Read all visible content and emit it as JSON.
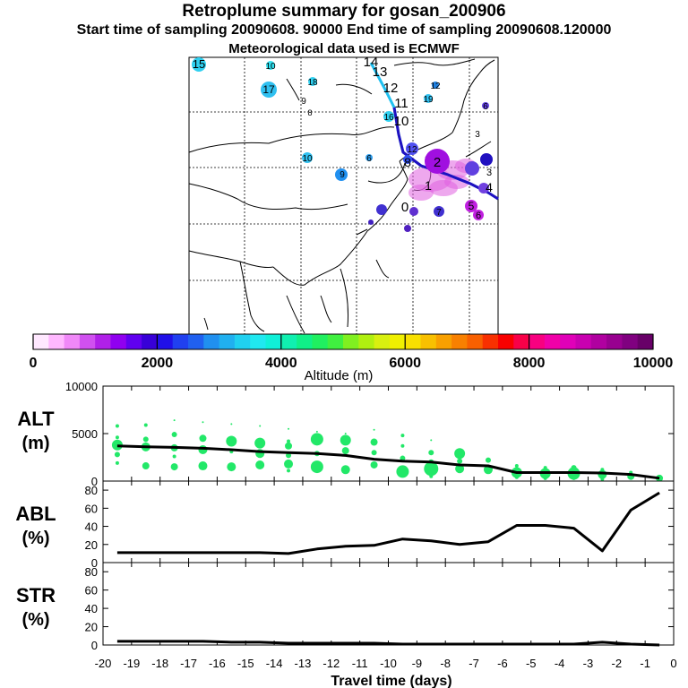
{
  "title": "Retroplume summary for gosan_200906",
  "subtitle": "Start time of sampling 20090608. 90000     End time of sampling 20090608.120000",
  "met_line": "Meteorological data used is ECMWF",
  "colors": {
    "blob": "#e060e0",
    "track_dark": "#2010c0",
    "track_light": "#20c0f0",
    "alt_dots": "#22e868"
  },
  "map_labels": [
    {
      "n": "14",
      "c": "#8020c0"
    },
    {
      "n": "13",
      "c": "#8020c0"
    },
    {
      "n": "12",
      "c": "#8020c0"
    },
    {
      "n": "11",
      "c": "#8020c0"
    },
    {
      "n": "10",
      "c": "#8020c0"
    },
    {
      "n": "15",
      "c": "#30d0f0"
    },
    {
      "n": "10",
      "c": "#30e0f0"
    },
    {
      "n": "17",
      "c": "#30c0f0"
    },
    {
      "n": "18",
      "c": "#30d0f0"
    },
    {
      "n": "9",
      "c": "#40e0e0"
    },
    {
      "n": "8",
      "c": "#40e0e0"
    },
    {
      "n": "12",
      "c": "#2080e0"
    },
    {
      "n": "19",
      "c": "#30c0f0"
    },
    {
      "n": "16",
      "c": "#30d0f0"
    },
    {
      "n": "10",
      "c": "#30a0f0"
    },
    {
      "n": "6",
      "c": "#30a0f0"
    },
    {
      "n": "9",
      "c": "#2090f0"
    },
    {
      "n": "12",
      "c": "#5050f0"
    },
    {
      "n": "8",
      "c": "#3050f0"
    },
    {
      "n": "2",
      "c": "#a010e0"
    },
    {
      "n": "1",
      "c": "#a010e0"
    },
    {
      "n": "0",
      "c": "#a010e0"
    },
    {
      "n": "7",
      "c": "#4030d0"
    },
    {
      "n": "5",
      "c": "#c020e0"
    },
    {
      "n": "6",
      "c": "#c020e0"
    },
    {
      "n": "4",
      "c": "#4030d0"
    },
    {
      "n": "3",
      "c": "#4030d0"
    },
    {
      "n": "6",
      "c": "#6040e0"
    },
    {
      "n": "3",
      "c": "#6040e0"
    }
  ],
  "colorbar": {
    "colors": [
      "#ffe8ff",
      "#ffb8ff",
      "#f088f8",
      "#d050f0",
      "#b020e8",
      "#9000f0",
      "#6000f0",
      "#3800d8",
      "#2010e8",
      "#2040f0",
      "#2060f0",
      "#2090f0",
      "#20b0f0",
      "#20d0f0",
      "#20e8f0",
      "#10f0d8",
      "#10f0b0",
      "#10f088",
      "#20f060",
      "#40f040",
      "#80f020",
      "#b0f010",
      "#d8f010",
      "#f0f000",
      "#f8e000",
      "#f8c000",
      "#f8a000",
      "#f88000",
      "#f86000",
      "#f83000",
      "#f80000",
      "#f80048",
      "#f80080",
      "#f000a8",
      "#e000b8",
      "#c800b0",
      "#b000a0",
      "#980090",
      "#800080",
      "#680068"
    ],
    "labels": [
      "0",
      "2000",
      "4000",
      "6000",
      "8000",
      "10000"
    ],
    "title": "Altitude (m)"
  },
  "chart_data": [
    {
      "type": "scatter+line",
      "panel": "ALT",
      "ylabel": "ALT",
      "yunit": "(m)",
      "ylim": [
        0,
        10000
      ],
      "yticks": [
        "10000",
        "5000",
        "0"
      ],
      "x": [
        -19.5,
        -18.5,
        -17.5,
        -16.5,
        -15.5,
        -14.5,
        -13.5,
        -12.5,
        -11.5,
        -10.5,
        -9.5,
        -8.5,
        -7.5,
        -6.5,
        -5.5,
        -4.5,
        -3.5,
        -2.5,
        -1.5,
        -0.5
      ],
      "line": [
        3700,
        3600,
        3550,
        3450,
        3300,
        3100,
        3000,
        2900,
        2700,
        2300,
        2100,
        2000,
        1700,
        1600,
        900,
        900,
        900,
        850,
        700,
        300
      ],
      "points": [
        [
          -19.5,
          5800,
          2
        ],
        [
          -19.5,
          4600,
          2
        ],
        [
          -19.5,
          3800,
          6
        ],
        [
          -19.5,
          2800,
          3
        ],
        [
          -19.5,
          1900,
          2
        ],
        [
          -18.5,
          5900,
          2
        ],
        [
          -18.5,
          4400,
          3
        ],
        [
          -18.5,
          3600,
          5
        ],
        [
          -18.5,
          1600,
          4
        ],
        [
          -17.5,
          6400,
          1
        ],
        [
          -17.5,
          4900,
          3
        ],
        [
          -17.5,
          3500,
          4
        ],
        [
          -17.5,
          2600,
          2
        ],
        [
          -17.5,
          1500,
          4
        ],
        [
          -16.5,
          6200,
          1
        ],
        [
          -16.5,
          4500,
          4
        ],
        [
          -16.5,
          3300,
          5
        ],
        [
          -16.5,
          1600,
          5
        ],
        [
          -15.5,
          6000,
          1
        ],
        [
          -15.5,
          4200,
          6
        ],
        [
          -15.5,
          3100,
          2
        ],
        [
          -15.5,
          1500,
          5
        ],
        [
          -14.5,
          5800,
          1
        ],
        [
          -14.5,
          4000,
          6
        ],
        [
          -14.5,
          2900,
          5
        ],
        [
          -14.5,
          1700,
          5
        ],
        [
          -13.5,
          5500,
          1
        ],
        [
          -13.5,
          4200,
          2
        ],
        [
          -13.5,
          3700,
          4
        ],
        [
          -13.5,
          2700,
          3
        ],
        [
          -13.5,
          1800,
          5
        ],
        [
          -13.5,
          1100,
          2
        ],
        [
          -12.5,
          5200,
          1
        ],
        [
          -12.5,
          4400,
          7
        ],
        [
          -12.5,
          2900,
          3
        ],
        [
          -12.5,
          1500,
          7
        ],
        [
          -11.5,
          5000,
          1
        ],
        [
          -11.5,
          4300,
          6
        ],
        [
          -11.5,
          3200,
          4
        ],
        [
          -11.5,
          1200,
          5
        ],
        [
          -10.5,
          5400,
          1
        ],
        [
          -10.5,
          4100,
          4
        ],
        [
          -10.5,
          3000,
          3
        ],
        [
          -10.5,
          1700,
          4
        ],
        [
          -9.5,
          4800,
          2
        ],
        [
          -9.5,
          3700,
          2
        ],
        [
          -9.5,
          2400,
          3
        ],
        [
          -9.5,
          1000,
          7
        ],
        [
          -8.5,
          4300,
          1
        ],
        [
          -8.5,
          3000,
          3
        ],
        [
          -8.5,
          2000,
          3
        ],
        [
          -8.5,
          1300,
          8
        ],
        [
          -8.5,
          500,
          2
        ],
        [
          -7.5,
          2900,
          6
        ],
        [
          -7.5,
          2100,
          3
        ],
        [
          -7.5,
          1300,
          5
        ],
        [
          -6.5,
          2200,
          3
        ],
        [
          -6.5,
          1200,
          5
        ],
        [
          -5.5,
          1600,
          2
        ],
        [
          -5.5,
          900,
          6
        ],
        [
          -5.5,
          400,
          2
        ],
        [
          -4.5,
          1400,
          2
        ],
        [
          -4.5,
          800,
          6
        ],
        [
          -4.5,
          300,
          2
        ],
        [
          -3.5,
          1400,
          3
        ],
        [
          -3.5,
          800,
          7
        ],
        [
          -3.5,
          300,
          2
        ],
        [
          -2.5,
          1200,
          2
        ],
        [
          -2.5,
          700,
          5
        ],
        [
          -2.5,
          200,
          2
        ],
        [
          -1.5,
          900,
          2
        ],
        [
          -1.5,
          500,
          4
        ],
        [
          -0.5,
          300,
          4
        ]
      ]
    },
    {
      "type": "line",
      "panel": "ABL",
      "ylabel": "ABL",
      "yunit": "(%)",
      "ylim": [
        0,
        90
      ],
      "yticks": [
        "80",
        "60",
        "40",
        "20",
        "0"
      ],
      "x": [
        -19.5,
        -18.5,
        -17.5,
        -16.5,
        -15.5,
        -14.5,
        -13.5,
        -12.5,
        -11.5,
        -10.5,
        -9.5,
        -8.5,
        -7.5,
        -6.5,
        -5.5,
        -4.5,
        -3.5,
        -2.5,
        -1.5,
        -0.5
      ],
      "values": [
        11,
        11,
        11,
        11,
        11,
        11,
        10,
        15,
        18,
        19,
        26,
        24,
        20,
        23,
        41,
        41,
        38,
        13,
        58,
        77
      ]
    },
    {
      "type": "line",
      "panel": "STR",
      "ylabel": "STR",
      "yunit": "(%)",
      "ylim": [
        0,
        90
      ],
      "yticks": [
        "80",
        "60",
        "40",
        "20",
        "0"
      ],
      "x": [
        -19.5,
        -18.5,
        -17.5,
        -16.5,
        -15.5,
        -14.5,
        -13.5,
        -12.5,
        -11.5,
        -10.5,
        -9.5,
        -8.5,
        -7.5,
        -6.5,
        -5.5,
        -4.5,
        -3.5,
        -2.5,
        -1.5,
        -0.5
      ],
      "values": [
        4,
        4,
        4,
        4,
        3,
        3,
        2,
        2,
        2,
        2,
        1,
        1,
        1,
        1,
        1,
        1,
        1,
        3,
        1,
        0
      ]
    }
  ],
  "xaxis": {
    "ticks": [
      "-20",
      "-19",
      "-18",
      "-17",
      "-16",
      "-15",
      "-14",
      "-13",
      "-12",
      "-11",
      "-10",
      "-9",
      "-8",
      "-7",
      "-6",
      "-5",
      "-4",
      "-3",
      "-2",
      "-1",
      "0"
    ],
    "label": "Travel time (days)"
  }
}
